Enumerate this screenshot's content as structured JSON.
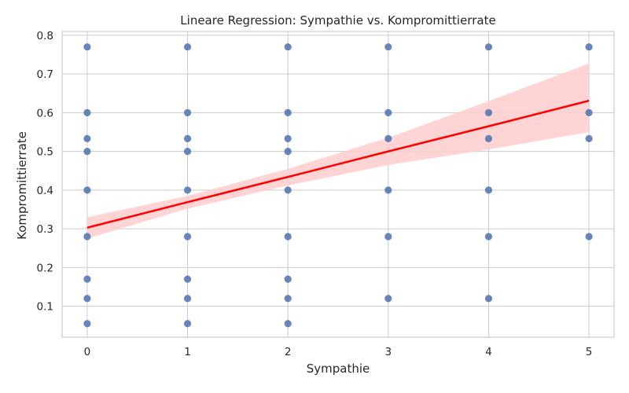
{
  "chart_data": {
    "type": "scatter",
    "title": "Lineare Regression: Sympathie vs. Kompromittierrate",
    "xlabel": "Sympathie",
    "ylabel": "Kompromittierrate",
    "xlim": [
      -0.25,
      5.25
    ],
    "ylim": [
      0.02,
      0.81
    ],
    "xticks": [
      0,
      1,
      2,
      3,
      4,
      5
    ],
    "yticks": [
      0.1,
      0.2,
      0.3,
      0.4,
      0.5,
      0.6,
      0.7,
      0.8
    ],
    "grid": true,
    "points": [
      {
        "x": 0,
        "y": 0.77
      },
      {
        "x": 0,
        "y": 0.6
      },
      {
        "x": 0,
        "y": 0.533
      },
      {
        "x": 0,
        "y": 0.5
      },
      {
        "x": 0,
        "y": 0.4
      },
      {
        "x": 0,
        "y": 0.28
      },
      {
        "x": 0,
        "y": 0.17
      },
      {
        "x": 0,
        "y": 0.12
      },
      {
        "x": 0,
        "y": 0.055
      },
      {
        "x": 1,
        "y": 0.77
      },
      {
        "x": 1,
        "y": 0.6
      },
      {
        "x": 1,
        "y": 0.533
      },
      {
        "x": 1,
        "y": 0.5
      },
      {
        "x": 1,
        "y": 0.4
      },
      {
        "x": 1,
        "y": 0.28
      },
      {
        "x": 1,
        "y": 0.17
      },
      {
        "x": 1,
        "y": 0.12
      },
      {
        "x": 1,
        "y": 0.055
      },
      {
        "x": 2,
        "y": 0.77
      },
      {
        "x": 2,
        "y": 0.6
      },
      {
        "x": 2,
        "y": 0.533
      },
      {
        "x": 2,
        "y": 0.5
      },
      {
        "x": 2,
        "y": 0.4
      },
      {
        "x": 2,
        "y": 0.28
      },
      {
        "x": 2,
        "y": 0.17
      },
      {
        "x": 2,
        "y": 0.12
      },
      {
        "x": 2,
        "y": 0.055
      },
      {
        "x": 3,
        "y": 0.77
      },
      {
        "x": 3,
        "y": 0.6
      },
      {
        "x": 3,
        "y": 0.533
      },
      {
        "x": 3,
        "y": 0.4
      },
      {
        "x": 3,
        "y": 0.28
      },
      {
        "x": 3,
        "y": 0.12
      },
      {
        "x": 4,
        "y": 0.77
      },
      {
        "x": 4,
        "y": 0.6
      },
      {
        "x": 4,
        "y": 0.533
      },
      {
        "x": 4,
        "y": 0.4
      },
      {
        "x": 4,
        "y": 0.28
      },
      {
        "x": 4,
        "y": 0.12
      },
      {
        "x": 5,
        "y": 0.77
      },
      {
        "x": 5,
        "y": 0.6
      },
      {
        "x": 5,
        "y": 0.533
      },
      {
        "x": 5,
        "y": 0.28
      }
    ],
    "regression": {
      "x": [
        0,
        1,
        2,
        3,
        4,
        5
      ],
      "y": [
        0.303,
        0.369,
        0.434,
        0.5,
        0.565,
        0.631
      ],
      "ci_upper": [
        0.33,
        0.385,
        0.455,
        0.535,
        0.63,
        0.727
      ],
      "ci_lower": [
        0.275,
        0.352,
        0.412,
        0.465,
        0.505,
        0.55
      ]
    },
    "colors": {
      "points": "#4c72b0",
      "line": "#ff0000",
      "band": "#ffcccc",
      "grid": "#cccccc",
      "text": "#262626"
    }
  }
}
